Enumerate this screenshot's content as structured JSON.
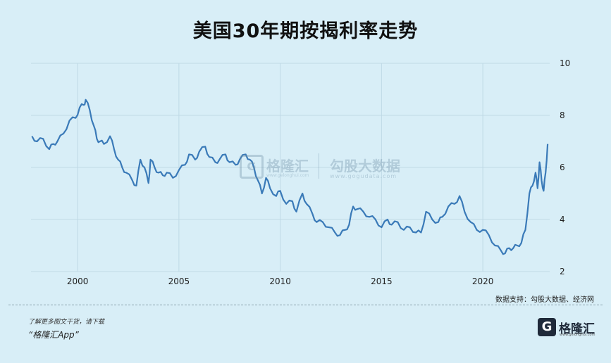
{
  "title": "美国30年期按揭利率走势",
  "source": "数据支持：勾股大数据、经济网",
  "footer": {
    "line1": "了解更多图文干货，请下载",
    "line2": "“格隆汇App”"
  },
  "logo": {
    "mark": "G",
    "name": "格隆汇",
    "url": "www.gelonghui.com"
  },
  "watermark": {
    "name": "格隆汇",
    "url": "www.gelonghui.com",
    "name2": "勾股大数据",
    "url2": "www.gogudata.com"
  },
  "colors": {
    "line": "#3a7ab8",
    "background": "#d8eef7",
    "grid": "#bfd9e6"
  },
  "chart_data": {
    "type": "line",
    "title": "美国30年期按揭利率走势",
    "xlabel": "",
    "ylabel": "",
    "xlim": [
      1997.7,
      2023.3
    ],
    "ylim": [
      2,
      10
    ],
    "xticks": [
      2000,
      2005,
      2010,
      2015,
      2020
    ],
    "yticks": [
      2,
      4,
      6,
      8,
      10
    ],
    "y_axis_side": "right",
    "grid": true,
    "series": [
      {
        "x": [
          1997.75,
          1998.0,
          1998.3,
          1998.6,
          1998.8,
          1999.0,
          1999.3,
          1999.6,
          1999.9,
          2000.1,
          2000.3,
          2000.4,
          2000.6,
          2000.8,
          2000.95,
          2001.1,
          2001.3,
          2001.6,
          2001.8,
          2002.0,
          2002.2,
          2002.4,
          2002.7,
          2002.9,
          2003.1,
          2003.3,
          2003.5,
          2003.6,
          2003.8,
          2004.0,
          2004.2,
          2004.4,
          2004.7,
          2005.0,
          2005.3,
          2005.5,
          2005.8,
          2006.0,
          2006.3,
          2006.5,
          2006.8,
          2007.0,
          2007.3,
          2007.5,
          2007.8,
          2008.0,
          2008.3,
          2008.5,
          2008.7,
          2008.9,
          2009.1,
          2009.3,
          2009.5,
          2009.8,
          2010.0,
          2010.3,
          2010.6,
          2010.8,
          2011.1,
          2011.3,
          2011.6,
          2011.8,
          2012.1,
          2012.4,
          2012.7,
          2012.95,
          2013.2,
          2013.4,
          2013.6,
          2013.8,
          2014.1,
          2014.4,
          2014.7,
          2015.0,
          2015.3,
          2015.5,
          2015.8,
          2016.1,
          2016.4,
          2016.7,
          2016.95,
          2017.2,
          2017.5,
          2017.8,
          2018.0,
          2018.3,
          2018.6,
          2018.85,
          2019.1,
          2019.4,
          2019.7,
          2020.0,
          2020.3,
          2020.6,
          2020.9,
          2021.1,
          2021.3,
          2021.5,
          2021.7,
          2021.9,
          2022.1,
          2022.3,
          2022.45,
          2022.6,
          2022.7,
          2022.8,
          2022.9,
          2023.0,
          2023.1,
          2023.2
        ],
        "y": [
          7.2,
          7.0,
          7.1,
          6.7,
          6.9,
          7.0,
          7.3,
          7.8,
          7.9,
          8.3,
          8.4,
          8.6,
          8.2,
          7.6,
          7.1,
          7.0,
          6.9,
          7.2,
          6.7,
          6.3,
          6.0,
          5.8,
          5.5,
          5.3,
          6.3,
          6.0,
          5.4,
          6.3,
          6.0,
          5.8,
          5.7,
          5.8,
          5.6,
          5.9,
          6.1,
          6.5,
          6.3,
          6.6,
          6.8,
          6.4,
          6.2,
          6.3,
          6.5,
          6.2,
          6.1,
          6.3,
          6.5,
          6.3,
          6.0,
          5.5,
          5.0,
          5.6,
          5.2,
          4.9,
          5.1,
          4.6,
          4.7,
          4.3,
          5.0,
          4.6,
          4.2,
          3.9,
          3.9,
          3.7,
          3.5,
          3.4,
          3.6,
          3.8,
          4.5,
          4.4,
          4.3,
          4.1,
          4.0,
          3.7,
          4.0,
          3.8,
          3.9,
          3.6,
          3.7,
          3.5,
          3.5,
          4.3,
          4.0,
          3.9,
          4.1,
          4.5,
          4.6,
          4.9,
          4.3,
          3.9,
          3.6,
          3.6,
          3.4,
          3.0,
          2.8,
          2.7,
          2.9,
          2.9,
          3.0,
          3.1,
          3.6,
          5.0,
          5.3,
          5.8,
          5.2,
          6.2,
          5.5,
          5.1,
          5.8,
          6.9
        ]
      }
    ]
  }
}
